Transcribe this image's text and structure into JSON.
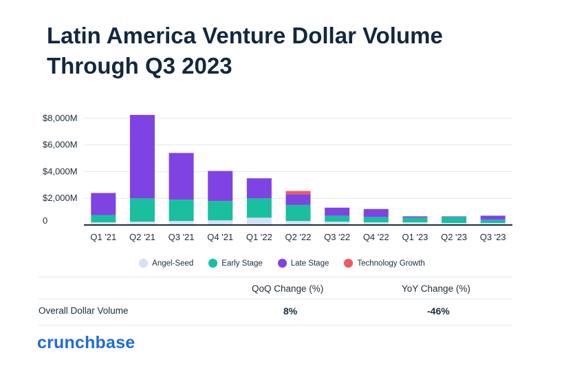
{
  "title": "Latin America Venture Dollar Volume Through Q3 2023",
  "colors": {
    "angel_seed": "#d3e1f6",
    "early_stage": "#19bf9f",
    "late_stage": "#8043e3",
    "technology_growth": "#ef5a63",
    "brand": "#1e6cd8"
  },
  "chart_data": {
    "type": "bar",
    "stacked": true,
    "title": "Latin America Venture Dollar Volume Through Q3 2023",
    "categories": [
      "Q1 '21",
      "Q2 '21",
      "Q3 '21",
      "Q4 '21",
      "Q1 '22",
      "Q2 '22",
      "Q3 '22",
      "Q4 '22",
      "Q1 '23",
      "Q2 '23",
      "Q3 '23"
    ],
    "y_ticks": [
      "0",
      "$2,000M",
      "$4,000M",
      "$6,000M",
      "$8,000M"
    ],
    "ylim": [
      0,
      8800
    ],
    "grid": true,
    "legend_position": "bottom",
    "series": [
      {
        "name": "Angel-Seed",
        "values": [
          200,
          250,
          300,
          350,
          550,
          300,
          250,
          200,
          200,
          150,
          150
        ]
      },
      {
        "name": "Early Stage",
        "values": [
          550,
          1750,
          1600,
          1450,
          1450,
          1200,
          450,
          400,
          350,
          450,
          250
        ]
      },
      {
        "name": "Late Stage",
        "values": [
          1650,
          6250,
          3500,
          2250,
          1500,
          800,
          600,
          600,
          100,
          50,
          300
        ]
      },
      {
        "name": "Technology Growth",
        "values": [
          0,
          0,
          0,
          0,
          0,
          250,
          0,
          0,
          0,
          0,
          0
        ]
      }
    ]
  },
  "table": {
    "headers": {
      "qoq": "QoQ Change (%)",
      "yoy": "YoY Change (%)"
    },
    "row": {
      "label": "Overall Dollar Volume",
      "qoq": "8%",
      "yoy": "-46%"
    }
  },
  "brand": "crunchbase"
}
